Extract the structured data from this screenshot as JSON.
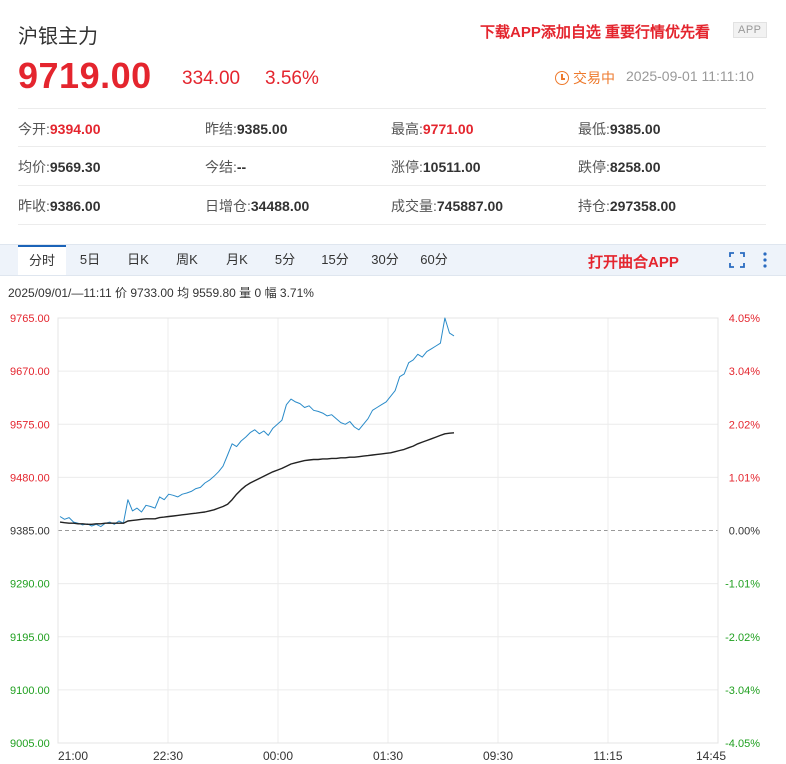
{
  "header": {
    "title": "沪银主力",
    "promo": "下载APP添加自选 重要行情优先看",
    "app_badge": "APP",
    "price": "9719.00",
    "change": "334.00",
    "change_pct": "3.56%",
    "status": "交易中",
    "timestamp": "2025-09-01 11:11:10"
  },
  "stats": [
    [
      {
        "label": "今开:",
        "value": "9394.00",
        "color": "red"
      },
      {
        "label": "昨结:",
        "value": "9385.00",
        "color": "dark"
      },
      {
        "label": "最高:",
        "value": "9771.00",
        "color": "red"
      },
      {
        "label": "最低:",
        "value": "9385.00",
        "color": "dark"
      }
    ],
    [
      {
        "label": "均价:",
        "value": "9569.30",
        "color": "dark"
      },
      {
        "label": "今结:",
        "value": "--",
        "color": "dark"
      },
      {
        "label": "涨停:",
        "value": "10511.00",
        "color": "dark"
      },
      {
        "label": "跌停:",
        "value": "8258.00",
        "color": "dark"
      }
    ],
    [
      {
        "label": "昨收:",
        "value": "9386.00",
        "color": "dark"
      },
      {
        "label": "日增仓:",
        "value": "34488.00",
        "color": "dark"
      },
      {
        "label": "成交量:",
        "value": "745887.00",
        "color": "dark"
      },
      {
        "label": "持仓:",
        "value": "297358.00",
        "color": "dark"
      }
    ]
  ],
  "tabs": [
    "分时",
    "5日",
    "日K",
    "周K",
    "月K",
    "5分",
    "15分",
    "30分",
    "60分"
  ],
  "active_tab": 0,
  "toolbar": {
    "open_app": "打开曲合APP",
    "fullscreen_icon": "fullscreen-icon",
    "more_icon": "more-vertical-icon"
  },
  "info_bar": {
    "time": "2025/09/01/—11:11",
    "price_label": "价",
    "price": "9733.00",
    "avg_label": "均",
    "avg": "9559.80",
    "volume_label": "量",
    "volume": "0",
    "change_label": "幅",
    "change": "3.71%"
  },
  "colors": {
    "up": "#e4252e",
    "down": "#20a020",
    "price_line": "#2a8bc9",
    "avg_line": "#222222",
    "accent": "#1b63b8"
  },
  "chart_data": {
    "type": "line",
    "x_ticks": [
      "21:00",
      "22:30",
      "00:00",
      "01:30",
      "09:30",
      "11:15",
      "14:45"
    ],
    "y_ticks": [
      "9765.00",
      "9670.00",
      "9575.00",
      "9480.00",
      "9385.00",
      "9290.00",
      "9195.00",
      "9100.00",
      "9005.00"
    ],
    "pct_ticks": [
      "4.05%",
      "3.04%",
      "2.02%",
      "1.01%",
      "0.00%",
      "-1.01%",
      "-2.02%",
      "-3.04%",
      "-4.05%"
    ],
    "ylim": [
      9005,
      9765
    ],
    "reference_price": 9385,
    "grid": true,
    "progress_fraction": 0.6,
    "series": [
      {
        "values": [
          9410,
          9405,
          9408,
          9400,
          9398,
          9395,
          9397,
          9393,
          9396,
          9392,
          9398,
          9400,
          9396,
          9402,
          9398,
          9440,
          9420,
          9425,
          9418,
          9430,
          9428,
          9425,
          9445,
          9440,
          9450,
          9448,
          9445,
          9450,
          9452,
          9455,
          9460,
          9462,
          9470,
          9475,
          9482,
          9490,
          9500,
          9520,
          9540,
          9535,
          9545,
          9552,
          9560,
          9565,
          9558,
          9563,
          9555,
          9568,
          9575,
          9582,
          9610,
          9620,
          9615,
          9612,
          9605,
          9608,
          9600,
          9598,
          9595,
          9590,
          9592,
          9585,
          9578,
          9575,
          9580,
          9570,
          9565,
          9575,
          9585,
          9600,
          9605,
          9610,
          9615,
          9625,
          9635,
          9660,
          9665,
          9685,
          9690,
          9700,
          9695,
          9705,
          9710,
          9715,
          9720,
          9765,
          9738,
          9733
        ]
      },
      {
        "values": [
          9400,
          9399,
          9398,
          9398,
          9397,
          9397,
          9396,
          9396,
          9397,
          9397,
          9398,
          9398,
          9398,
          9398,
          9398,
          9402,
          9403,
          9404,
          9405,
          9406,
          9406,
          9406,
          9408,
          9409,
          9410,
          9411,
          9412,
          9413,
          9414,
          9415,
          9416,
          9417,
          9418,
          9420,
          9422,
          9425,
          9428,
          9432,
          9440,
          9450,
          9458,
          9465,
          9470,
          9474,
          9478,
          9482,
          9486,
          9490,
          9493,
          9496,
          9500,
          9504,
          9506,
          9508,
          9510,
          9511,
          9512,
          9512,
          9513,
          9513,
          9514,
          9514,
          9515,
          9515,
          9516,
          9516,
          9517,
          9518,
          9519,
          9520,
          9521,
          9522,
          9523,
          9524,
          9526,
          9528,
          9530,
          9533,
          9536,
          9540,
          9543,
          9546,
          9549,
          9552,
          9555,
          9558,
          9559,
          9559.8
        ]
      }
    ]
  }
}
